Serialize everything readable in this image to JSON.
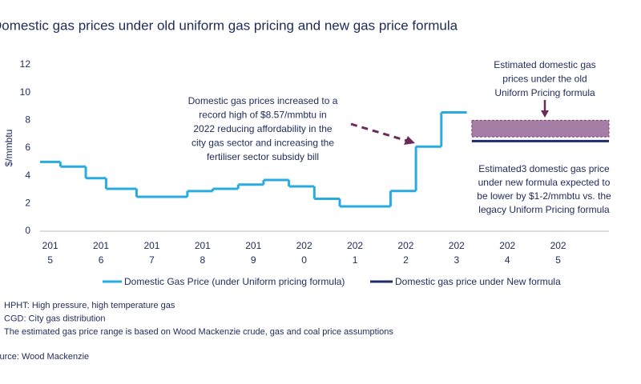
{
  "chart_data": {
    "type": "step-line",
    "title": "Domestic gas prices under old uniform gas pricing and new gas price formula",
    "y_label": "$/mmbtu",
    "xlim": [
      2015.0,
      2026.2
    ],
    "xticks": [
      {
        "value": 2015.2,
        "label": "2015"
      },
      {
        "value": 2016.2,
        "label": "2016"
      },
      {
        "value": 2017.2,
        "label": "2017"
      },
      {
        "value": 2018.2,
        "label": "2018"
      },
      {
        "value": 2019.2,
        "label": "2019"
      },
      {
        "value": 2020.2,
        "label": "2020"
      },
      {
        "value": 2021.2,
        "label": "2021"
      },
      {
        "value": 2022.2,
        "label": "2022"
      },
      {
        "value": 2023.2,
        "label": "2023"
      },
      {
        "value": 2024.2,
        "label": "2024"
      },
      {
        "value": 2025.2,
        "label": "2025"
      }
    ],
    "ylim": [
      0,
      12
    ],
    "yticks": [
      0,
      2,
      4,
      6,
      8,
      10,
      12
    ],
    "series": [
      {
        "name": "Domestic Gas Price (under Uniform pricing formula)",
        "color": "#29abe2",
        "x": [
          2015.0,
          2015.4,
          2015.9,
          2016.3,
          2016.9,
          2017.9,
          2018.4,
          2018.9,
          2019.4,
          2019.9,
          2020.4,
          2020.9,
          2021.9,
          2022.4,
          2022.9,
          2023.4
        ],
        "values": [
          5.0,
          4.66,
          3.82,
          3.06,
          2.48,
          2.89,
          3.06,
          3.36,
          3.69,
          3.23,
          2.34,
          1.79,
          2.9,
          6.1,
          8.57,
          8.57
        ]
      },
      {
        "name": "Domestic gas price under New formula",
        "color": "#1f2a6b",
        "x": [
          2023.5,
          2026.2
        ],
        "values": [
          6.5,
          6.5
        ]
      }
    ],
    "range": {
      "x": [
        2023.5,
        2026.2
      ],
      "low": 6.8,
      "high": 8.0,
      "color": "#a57ea5"
    },
    "annotations": [
      [
        "Domestic gas prices increased to a",
        "record high of $8.57/mmbtu  in",
        "2022 reducing affordability in the",
        "city gas sector and increasing the",
        "fertiliser sector subsidy bill"
      ],
      [
        "Estimated domestic gas",
        "prices under the old",
        "Uniform  Pricing formula"
      ],
      [
        "Estimated3 domestic gas price",
        "under new formula expected to",
        "be lower by $1-2/mmbtu vs. the",
        "legacy Uniform Pricing formula"
      ]
    ],
    "notes": [
      "HPHT: High pressure, high temperature gas",
      "CGD: City gas distribution",
      "The estimated gas price range is based on Wood Mackenzie crude, gas and coal price assumptions"
    ],
    "source": "Source: Wood Mackenzie"
  }
}
